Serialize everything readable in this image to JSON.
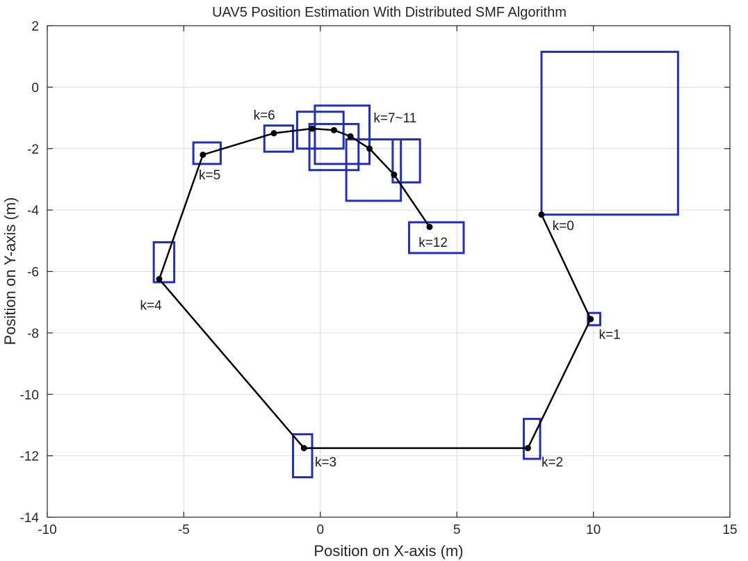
{
  "chart_data": {
    "type": "line",
    "title": "UAV5 Position Estimation With  Distributed SMF Algorithm",
    "xlabel": "Position on X-axis (m)",
    "ylabel": "Position on Y-axis (m)",
    "xlim": [
      -10,
      15
    ],
    "ylim": [
      -14,
      2
    ],
    "xticks": [
      -10,
      -5,
      0,
      5,
      10,
      15
    ],
    "yticks": [
      -14,
      -12,
      -10,
      -8,
      -6,
      -4,
      -2,
      0,
      2
    ],
    "grid": true,
    "colors": {
      "trajectory": "#000000",
      "boxes": "#1f2fbf"
    },
    "trajectory": {
      "x": [
        8.1,
        9.9,
        7.6,
        -0.6,
        -5.9,
        -4.3,
        -1.7,
        -0.3,
        0.5,
        1.1,
        1.8,
        2.7,
        4.0
      ],
      "y": [
        -4.15,
        -7.55,
        -11.75,
        -11.75,
        -6.25,
        -2.2,
        -1.5,
        -1.35,
        -1.4,
        -1.6,
        -2.0,
        -2.85,
        -4.55
      ]
    },
    "boxes": [
      {
        "x0": 8.1,
        "x1": 13.1,
        "y0": -4.15,
        "y1": 1.15
      },
      {
        "x0": 9.8,
        "x1": 10.25,
        "y0": -7.75,
        "y1": -7.35
      },
      {
        "x0": 7.45,
        "x1": 8.05,
        "y0": -12.1,
        "y1": -10.8
      },
      {
        "x0": -1.0,
        "x1": -0.3,
        "y0": -12.7,
        "y1": -11.3
      },
      {
        "x0": -6.1,
        "x1": -5.35,
        "y0": -6.35,
        "y1": -5.05
      },
      {
        "x0": -4.65,
        "x1": -3.65,
        "y0": -2.5,
        "y1": -1.8
      },
      {
        "x0": -2.05,
        "x1": -1.0,
        "y0": -2.1,
        "y1": -1.25
      },
      {
        "x0": -0.85,
        "x1": 0.85,
        "y0": -2.0,
        "y1": -0.8
      },
      {
        "x0": -0.2,
        "x1": 1.8,
        "y0": -2.5,
        "y1": -0.6
      },
      {
        "x0": -0.4,
        "x1": 1.4,
        "y0": -2.7,
        "y1": -1.2
      },
      {
        "x0": 0.95,
        "x1": 2.95,
        "y0": -3.7,
        "y1": -1.7
      },
      {
        "x0": 2.65,
        "x1": 3.65,
        "y0": -3.1,
        "y1": -1.7
      },
      {
        "x0": 3.25,
        "x1": 5.25,
        "y0": -5.4,
        "y1": -4.4
      }
    ],
    "annotations": [
      {
        "text": "k=0",
        "x": 8.5,
        "y": -4.65
      },
      {
        "text": "k=1",
        "x": 10.2,
        "y": -8.2
      },
      {
        "text": "k=2",
        "x": 8.1,
        "y": -12.35
      },
      {
        "text": "k=3",
        "x": -0.2,
        "y": -12.35
      },
      {
        "text": "k=4",
        "x": -6.6,
        "y": -7.25
      },
      {
        "text": "k=5",
        "x": -4.45,
        "y": -3.0
      },
      {
        "text": "k=6",
        "x": -2.45,
        "y": -1.05
      },
      {
        "text": "k=7~11",
        "x": 1.95,
        "y": -1.15
      },
      {
        "text": "k=12",
        "x": 3.6,
        "y": -5.2
      }
    ]
  }
}
